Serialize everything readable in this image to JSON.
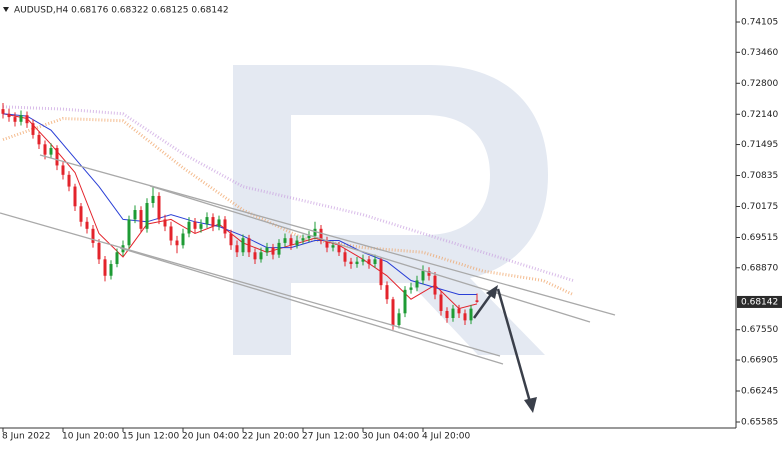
{
  "chart_data": {
    "type": "candlestick",
    "title": "AUDUSD,H4  0.68176 0.68322 0.68125 0.68142",
    "categories": [
      "8 Jun 2022",
      null,
      null,
      null,
      null,
      null,
      null,
      null,
      null,
      null,
      "10 Jun 20:00",
      null,
      null,
      null,
      null,
      null,
      null,
      null,
      null,
      null,
      "15 Jun 12:00",
      null,
      null,
      null,
      null,
      null,
      null,
      null,
      null,
      null,
      "20 Jun 04:00",
      null,
      null,
      null,
      null,
      null,
      null,
      null,
      null,
      null,
      "22 Jun 20:00",
      null,
      null,
      null,
      null,
      null,
      null,
      null,
      null,
      null,
      "27 Jun 12:00",
      null,
      null,
      null,
      null,
      null,
      null,
      null,
      null,
      null,
      "30 Jun 04:00",
      null,
      null,
      null,
      null,
      null,
      null,
      null,
      null,
      null,
      "4 Jul 20:00",
      null,
      null,
      null,
      null,
      null,
      null,
      null,
      null,
      null
    ],
    "open": [
      0.7225,
      0.7215,
      0.7208,
      0.7198,
      0.7212,
      0.7195,
      0.717,
      0.715,
      0.7128,
      0.7142,
      0.7105,
      0.7085,
      0.706,
      0.7018,
      0.6985,
      0.697,
      0.694,
      0.6905,
      0.687,
      0.6895,
      0.692,
      0.6935,
      0.699,
      0.701,
      0.697,
      0.7025,
      0.704,
      0.699,
      0.6975,
      0.6945,
      0.6935,
      0.696,
      0.6985,
      0.697,
      0.698,
      0.6995,
      0.6975,
      0.699,
      0.696,
      0.6935,
      0.692,
      0.695,
      0.692,
      0.6905,
      0.692,
      0.693,
      0.6915,
      0.694,
      0.695,
      0.6935,
      0.6945,
      0.695,
      0.6955,
      0.697,
      0.6945,
      0.693,
      0.6935,
      0.692,
      0.69,
      0.6895,
      0.69,
      0.6905,
      0.6895,
      0.6905,
      0.685,
      0.682,
      0.6765,
      0.679,
      0.684,
      0.6845,
      0.686,
      0.688,
      0.687,
      0.683,
      0.6795,
      0.678,
      0.68,
      0.679,
      0.6775,
      0.68176
    ],
    "high": [
      0.7238,
      0.7226,
      0.7218,
      0.7222,
      0.722,
      0.7203,
      0.7178,
      0.7158,
      0.7152,
      0.7148,
      0.7112,
      0.7093,
      0.7066,
      0.7025,
      0.6995,
      0.6978,
      0.6948,
      0.6912,
      0.6903,
      0.6928,
      0.6945,
      0.6998,
      0.702,
      0.7018,
      0.7035,
      0.7058,
      0.7048,
      0.7,
      0.6985,
      0.6955,
      0.697,
      0.6995,
      0.6993,
      0.699,
      0.7005,
      0.7003,
      0.6998,
      0.6997,
      0.6968,
      0.6945,
      0.6958,
      0.6957,
      0.6928,
      0.693,
      0.694,
      0.6938,
      0.6948,
      0.696,
      0.6958,
      0.6955,
      0.6958,
      0.6965,
      0.6985,
      0.6978,
      0.6953,
      0.6943,
      0.6942,
      0.6928,
      0.6908,
      0.691,
      0.6915,
      0.6912,
      0.6915,
      0.691,
      0.6858,
      0.6825,
      0.68,
      0.6848,
      0.6855,
      0.687,
      0.6892,
      0.6888,
      0.6878,
      0.6838,
      0.6803,
      0.6808,
      0.6808,
      0.6798,
      0.6808,
      0.68322
    ],
    "low": [
      0.7205,
      0.7198,
      0.7188,
      0.719,
      0.7185,
      0.7162,
      0.714,
      0.7118,
      0.712,
      0.7095,
      0.7075,
      0.705,
      0.7008,
      0.6975,
      0.696,
      0.693,
      0.6895,
      0.6858,
      0.6862,
      0.6888,
      0.6912,
      0.6928,
      0.6982,
      0.6962,
      0.6962,
      0.7015,
      0.698,
      0.6965,
      0.6935,
      0.6918,
      0.6928,
      0.6952,
      0.696,
      0.6962,
      0.6972,
      0.6965,
      0.6967,
      0.695,
      0.6925,
      0.691,
      0.6912,
      0.691,
      0.6895,
      0.6898,
      0.6912,
      0.6905,
      0.6908,
      0.6932,
      0.6925,
      0.6928,
      0.6937,
      0.6942,
      0.6948,
      0.6937,
      0.692,
      0.6922,
      0.6912,
      0.689,
      0.6885,
      0.6887,
      0.6892,
      0.6885,
      0.6887,
      0.684,
      0.681,
      0.6755,
      0.6758,
      0.6782,
      0.6832,
      0.6837,
      0.6852,
      0.686,
      0.682,
      0.6785,
      0.677,
      0.6772,
      0.678,
      0.6765,
      0.6767,
      0.68125
    ],
    "close": [
      0.7215,
      0.7208,
      0.7198,
      0.7212,
      0.7195,
      0.717,
      0.715,
      0.7128,
      0.7142,
      0.7105,
      0.7085,
      0.706,
      0.7018,
      0.6985,
      0.697,
      0.694,
      0.6905,
      0.687,
      0.6895,
      0.692,
      0.6935,
      0.699,
      0.701,
      0.697,
      0.7025,
      0.704,
      0.699,
      0.6975,
      0.6945,
      0.6935,
      0.696,
      0.6985,
      0.697,
      0.698,
      0.6995,
      0.6975,
      0.699,
      0.696,
      0.6935,
      0.692,
      0.695,
      0.692,
      0.6905,
      0.692,
      0.693,
      0.6915,
      0.694,
      0.695,
      0.6935,
      0.6945,
      0.695,
      0.6955,
      0.697,
      0.6945,
      0.693,
      0.6935,
      0.692,
      0.69,
      0.6895,
      0.69,
      0.6905,
      0.6895,
      0.6905,
      0.685,
      0.682,
      0.6765,
      0.679,
      0.684,
      0.6845,
      0.686,
      0.688,
      0.687,
      0.683,
      0.6795,
      0.678,
      0.68,
      0.679,
      0.6775,
      0.68,
      0.68142
    ],
    "up_color": "#1e9b34",
    "down_color": "#e3232b",
    "ylim": [
      0.65457,
      0.74574
    ],
    "yticks": [
      0.74105,
      {
        "value": 0.7346,
        "label": "0.73460"
      },
      {
        "value": 0.728,
        "label": "0.72800"
      },
      {
        "value": 0.7214,
        "label": "0.72140"
      },
      0.71495,
      0.70835,
      0.70175,
      0.69515,
      {
        "value": 0.6887,
        "label": "0.68870"
      },
      {
        "value": 0.6755,
        "label": "0.67550"
      },
      0.66905,
      0.66245,
      0.65585
    ],
    "last_price": 0.68142,
    "lines": [
      {
        "color": "#e3232b",
        "x": [
          0,
          4,
          8,
          12,
          16,
          20,
          24,
          28,
          32,
          36,
          40,
          44,
          48,
          52,
          56,
          60,
          64,
          68,
          72,
          76,
          79
        ],
        "values": [
          0.7215,
          0.7205,
          0.715,
          0.709,
          0.696,
          0.691,
          0.698,
          0.699,
          0.696,
          0.698,
          0.694,
          0.692,
          0.6935,
          0.695,
          0.6935,
          0.6905,
          0.687,
          0.682,
          0.685,
          0.68,
          0.681
        ]
      },
      {
        "color": "#2a3fd6",
        "x": [
          0,
          4,
          8,
          12,
          16,
          20,
          24,
          28,
          32,
          36,
          40,
          44,
          48,
          52,
          56,
          60,
          64,
          68,
          72,
          76,
          79
        ],
        "values": [
          0.7215,
          0.721,
          0.718,
          0.712,
          0.706,
          0.699,
          0.6985,
          0.7,
          0.6985,
          0.6975,
          0.6955,
          0.693,
          0.693,
          0.6945,
          0.6945,
          0.692,
          0.69,
          0.686,
          0.6845,
          0.683,
          0.683
        ]
      }
    ],
    "cloud": [
      {
        "color": "#f0a060",
        "x": [
          0,
          10,
          20,
          30,
          40,
          50,
          60,
          70,
          80,
          90,
          95
        ],
        "values": [
          0.716,
          0.7205,
          0.72,
          0.71,
          0.701,
          0.695,
          0.693,
          0.692,
          0.688,
          0.686,
          0.683
        ]
      },
      {
        "color": "#c9a0e0",
        "x": [
          0,
          10,
          20,
          30,
          40,
          50,
          60,
          70,
          80,
          90,
          95
        ],
        "values": [
          0.723,
          0.7225,
          0.7215,
          0.713,
          0.706,
          0.703,
          0.7,
          0.696,
          0.692,
          0.688,
          0.686
        ]
      }
    ]
  }
}
